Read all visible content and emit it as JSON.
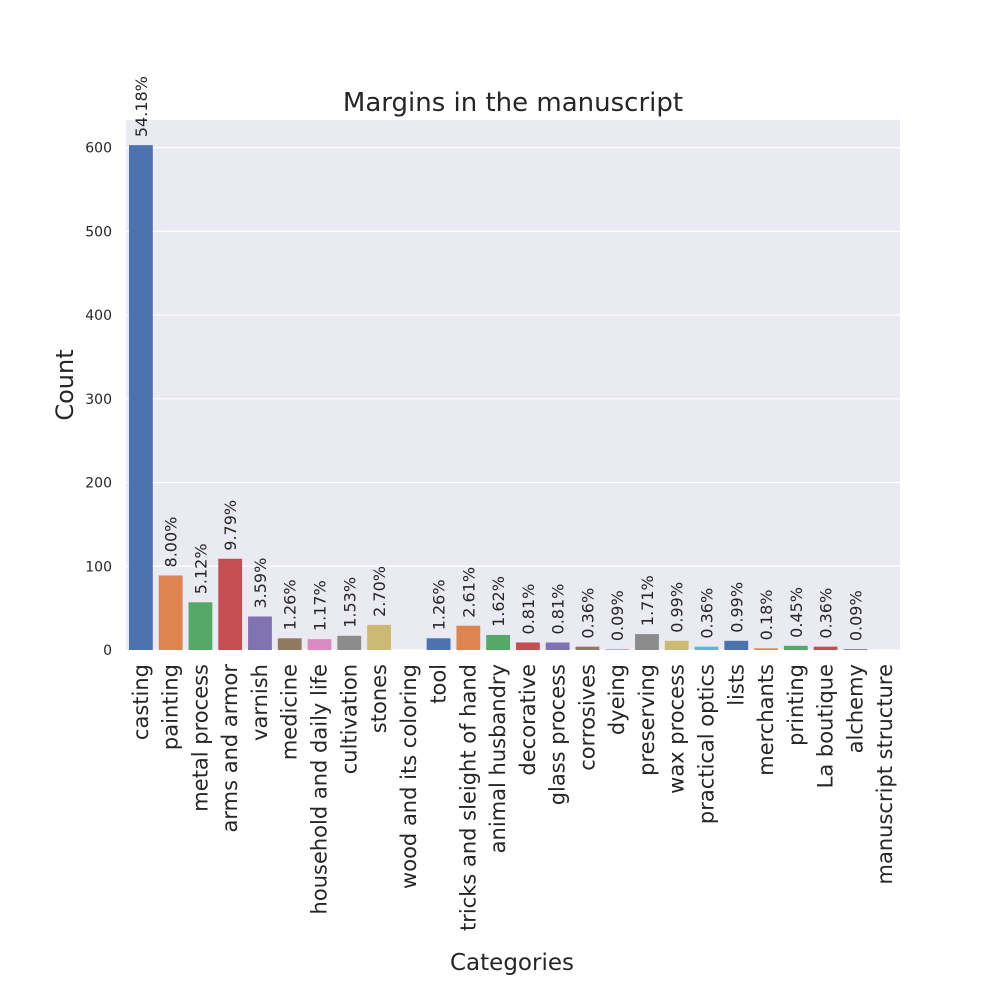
{
  "chart_data": {
    "type": "bar",
    "title": "Margins in the manuscript",
    "xlabel": "Categories",
    "ylabel": "Count",
    "ylim": [
      0,
      633
    ],
    "yticks": [
      0,
      100,
      200,
      300,
      400,
      500,
      600
    ],
    "grid": true,
    "categories": [
      "casting",
      "painting",
      "metal process",
      "arms and armor",
      "varnish",
      "medicine",
      "household and daily life",
      "cultivation",
      "stones",
      "wood and its coloring",
      "tool",
      "tricks and sleight of hand",
      "animal husbandry",
      "decorative",
      "glass process",
      "corrosives",
      "dyeing",
      "preserving",
      "wax process",
      "practical optics",
      "lists",
      "merchants",
      "printing",
      "La boutique",
      "alchemy",
      "manuscript structure"
    ],
    "values": [
      603,
      89,
      57,
      109,
      40,
      14,
      13,
      17,
      30,
      0,
      14,
      29,
      18,
      9,
      9,
      4,
      1,
      19,
      11,
      4,
      11,
      2,
      5,
      4,
      1,
      0
    ],
    "data_labels": [
      "54.18%",
      "8.00%",
      "5.12%",
      "9.79%",
      "3.59%",
      "1.26%",
      "1.17%",
      "1.53%",
      "2.70%",
      "",
      "1.26%",
      "2.61%",
      "1.62%",
      "0.81%",
      "0.81%",
      "0.36%",
      "0.09%",
      "1.71%",
      "0.99%",
      "0.36%",
      "0.99%",
      "0.18%",
      "0.45%",
      "0.36%",
      "0.09%",
      ""
    ],
    "colors": [
      "#4c72b0",
      "#dd8452",
      "#55a868",
      "#c44e52",
      "#8172b3",
      "#937860",
      "#da8bc3",
      "#8c8c8c",
      "#ccb974",
      "#64b5cd"
    ],
    "plot_background": "#eaeaf2",
    "grid_color": "#ffffff"
  }
}
